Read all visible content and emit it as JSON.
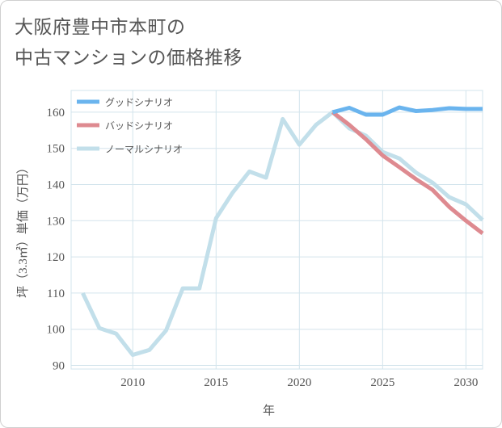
{
  "title_line1": "大阪府豊中市本町の",
  "title_line2": "中古マンションの価格推移",
  "chart_data": {
    "type": "line",
    "xlabel": "年",
    "ylabel": "坪（3.3㎡）単価（万円）",
    "xlim": [
      2006.3,
      2031
    ],
    "ylim": [
      89,
      166
    ],
    "x_ticks": [
      2010,
      2015,
      2020,
      2025,
      2030
    ],
    "y_ticks": [
      90,
      100,
      110,
      120,
      130,
      140,
      150,
      160
    ],
    "grid": true,
    "legend_position": "top-left",
    "series": [
      {
        "name": "グッドシナリオ",
        "color": "#6ab4ee",
        "x": [
          2022,
          2023,
          2024,
          2025,
          2026,
          2027,
          2028,
          2029,
          2030,
          2031
        ],
        "values": [
          160,
          161.2,
          159.3,
          159.3,
          161.3,
          160.3,
          160.6,
          161.1,
          160.9,
          160.9
        ]
      },
      {
        "name": "バッドシナリオ",
        "color": "#de8a90",
        "x": [
          2022,
          2023,
          2024,
          2025,
          2026,
          2027,
          2028,
          2029,
          2030,
          2031
        ],
        "values": [
          160,
          156.5,
          152.5,
          148,
          144.8,
          141.5,
          138.5,
          133.8,
          130,
          126.5
        ]
      },
      {
        "name": "ノーマルシナリオ",
        "color": "#c2dfea",
        "x": [
          2007,
          2008,
          2009,
          2010,
          2011,
          2012,
          2013,
          2014,
          2015,
          2016,
          2017,
          2018,
          2019,
          2020,
          2021,
          2022,
          2023,
          2024,
          2025,
          2026,
          2027,
          2028,
          2029,
          2030,
          2031
        ],
        "values": [
          110,
          100.3,
          98.8,
          92.9,
          94.3,
          99.7,
          111.3,
          111.3,
          130.7,
          137.8,
          143.6,
          141.9,
          158.1,
          151,
          156.5,
          160,
          155.5,
          153.5,
          149,
          147.2,
          143.3,
          140.5,
          136.5,
          134.5,
          130.2
        ]
      }
    ]
  }
}
